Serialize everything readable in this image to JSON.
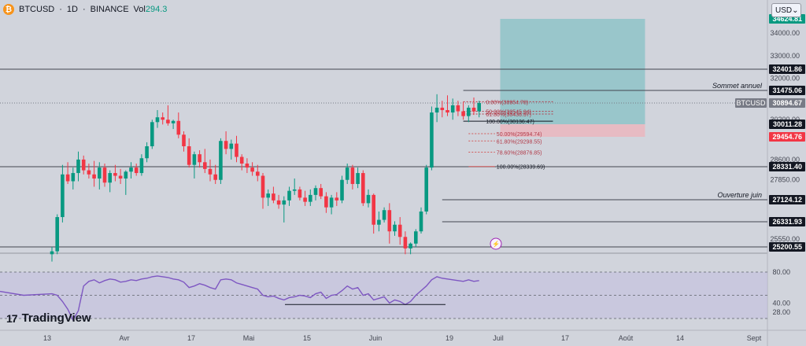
{
  "header": {
    "symbol": "BTCUSD",
    "sep1": "·",
    "interval": "1D",
    "sep2": "·",
    "exchange": "BINANCE",
    "vol_label": "Vol",
    "vol_value": "294.3"
  },
  "currency": {
    "label": "USD",
    "arrow": "⌄"
  },
  "logo": {
    "mark": "17",
    "text": "TradingView"
  },
  "colors": {
    "up": "#089981",
    "down": "#f23645",
    "rsi": "#7e57c2",
    "bg": "#d1d4dc",
    "tp_zone": "#8fc3c8",
    "sl_zone": "#e9b8c0"
  },
  "chart_data": {
    "type": "candlestick",
    "price_axis": {
      "ticks": [
        "34000.00",
        "33000.00",
        "32000.00",
        "30200.00",
        "28600.00",
        "27850.00",
        "25550.00"
      ],
      "labels": [
        {
          "text": "34624.81",
          "price": 34624.81,
          "bg": "#089981",
          "fg": "#ffffff"
        },
        {
          "text": "32401.86",
          "price": 32401.86,
          "bg": "#131722",
          "fg": "#ffffff"
        },
        {
          "text": "31475.06",
          "price": 31475.06,
          "bg": "#131722",
          "fg": "#ffffff"
        },
        {
          "text": "30894.67",
          "price": 30894.67,
          "bg": "#787b86",
          "fg": "#ffffff"
        },
        {
          "text": "30011.28",
          "price": 30011.28,
          "bg": "#131722",
          "fg": "#ffffff"
        },
        {
          "text": "29454.76",
          "price": 29454.76,
          "bg": "#f23645",
          "fg": "#ffffff"
        },
        {
          "text": "28331.40",
          "price": 28331.4,
          "bg": "#131722",
          "fg": "#ffffff"
        },
        {
          "text": "27124.12",
          "price": 27124.12,
          "bg": "#131722",
          "fg": "#ffffff"
        },
        {
          "text": "26331.93",
          "price": 26331.93,
          "bg": "#131722",
          "fg": "#ffffff"
        },
        {
          "text": "25200.55",
          "price": 25200.55,
          "bg": "#131722",
          "fg": "#ffffff"
        }
      ],
      "symbol_tag": "BTCUSD"
    },
    "time_axis": [
      "13",
      "Avr",
      "17",
      "Mai",
      "15",
      "Juin",
      "19",
      "Juil",
      "17",
      "Août",
      "14",
      "Sept"
    ],
    "levels": [
      {
        "price": 32401.86,
        "label": ""
      },
      {
        "price": 31475.06,
        "label": "Sommet annuel"
      },
      {
        "price": 28331.4,
        "label": ""
      },
      {
        "price": 27124.12,
        "label": "Ouverture juin"
      },
      {
        "price": 26331.93,
        "label": ""
      },
      {
        "price": 25200.55,
        "label": ""
      }
    ],
    "fib_levels": [
      {
        "text": "0.00%(30954.78)",
        "price": 30954.78
      },
      {
        "text": "50.00%(30545.34)",
        "price": 30545.34
      },
      {
        "text": "61.80%(30436.37)",
        "price": 30436.37
      },
      {
        "text": "100.00%(30136.47)",
        "price": 30136.47
      },
      {
        "text": "50.00%(29594.74)",
        "price": 29594.74
      },
      {
        "text": "61.80%(29298.55)",
        "price": 29298.55
      },
      {
        "text": "78.60%(28876.85)",
        "price": 28876.85
      },
      {
        "text": "100.00%(28339.69)",
        "price": 28339.69
      }
    ],
    "position": {
      "entry": 30011.28,
      "target": 34624.81,
      "stop": 29454.76
    },
    "candles": [
      [
        24950,
        25200,
        24700,
        25050
      ],
      [
        25050,
        26600,
        24950,
        26500
      ],
      [
        26500,
        28400,
        26300,
        28050
      ],
      [
        28050,
        28500,
        27700,
        27800
      ],
      [
        27800,
        28300,
        27500,
        28100
      ],
      [
        28100,
        28900,
        27800,
        28600
      ],
      [
        28600,
        28750,
        28050,
        28200
      ],
      [
        28200,
        28450,
        27900,
        28050
      ],
      [
        28050,
        28550,
        27600,
        27900
      ],
      [
        27900,
        28500,
        27500,
        28300
      ],
      [
        28300,
        28450,
        27600,
        27750
      ],
      [
        27750,
        28200,
        27400,
        28100
      ],
      [
        28100,
        28400,
        27800,
        28000
      ],
      [
        28000,
        28250,
        27700,
        27900
      ],
      [
        27900,
        28200,
        27300,
        28150
      ],
      [
        28150,
        28500,
        27900,
        28300
      ],
      [
        28300,
        28450,
        28000,
        28100
      ],
      [
        28100,
        28800,
        28000,
        28650
      ],
      [
        28650,
        29250,
        28500,
        29100
      ],
      [
        29100,
        30200,
        29000,
        30100
      ],
      [
        30100,
        30600,
        29850,
        30300
      ],
      [
        30300,
        30500,
        30000,
        30200
      ],
      [
        30200,
        30800,
        29950,
        30050
      ],
      [
        30050,
        30200,
        29800,
        30150
      ],
      [
        30150,
        30500,
        29400,
        29550
      ],
      [
        29550,
        29700,
        28900,
        29100
      ],
      [
        29100,
        29400,
        28300,
        28400
      ],
      [
        28400,
        28900,
        27900,
        28800
      ],
      [
        28800,
        28950,
        28300,
        28500
      ],
      [
        28500,
        29000,
        28100,
        28250
      ],
      [
        28250,
        28600,
        27800,
        28050
      ],
      [
        28050,
        28400,
        27700,
        27850
      ],
      [
        27850,
        29400,
        27700,
        29300
      ],
      [
        29300,
        29700,
        28800,
        29000
      ],
      [
        29000,
        29350,
        28600,
        29200
      ],
      [
        29200,
        29500,
        28500,
        28700
      ],
      [
        28700,
        28800,
        28200,
        28450
      ],
      [
        28450,
        28650,
        28100,
        28300
      ],
      [
        28300,
        28500,
        28000,
        28150
      ],
      [
        28150,
        28400,
        27800,
        28000
      ],
      [
        28000,
        28100,
        26800,
        27200
      ],
      [
        27200,
        27500,
        26900,
        27350
      ],
      [
        27350,
        27600,
        27000,
        27100
      ],
      [
        27100,
        27300,
        26800,
        26950
      ],
      [
        26950,
        27250,
        26300,
        27100
      ],
      [
        27100,
        27600,
        26900,
        27450
      ],
      [
        27450,
        27900,
        27300,
        27500
      ],
      [
        27500,
        27600,
        27100,
        27200
      ],
      [
        27200,
        27450,
        26900,
        27050
      ],
      [
        27050,
        27500,
        26900,
        27300
      ],
      [
        27300,
        27650,
        27100,
        27550
      ],
      [
        27550,
        27700,
        27150,
        27250
      ],
      [
        27250,
        27400,
        26650,
        26850
      ],
      [
        26850,
        27300,
        26600,
        27200
      ],
      [
        27200,
        27400,
        26900,
        27100
      ],
      [
        27100,
        28000,
        27000,
        27850
      ],
      [
        27850,
        28450,
        27700,
        28300
      ],
      [
        28300,
        28400,
        27500,
        27700
      ],
      [
        27700,
        28300,
        27550,
        28100
      ],
      [
        28100,
        28200,
        26900,
        27000
      ],
      [
        27000,
        27500,
        26850,
        27300
      ],
      [
        27300,
        27350,
        25800,
        26200
      ],
      [
        26200,
        26700,
        25900,
        26400
      ],
      [
        26400,
        26850,
        26300,
        26750
      ],
      [
        26750,
        27000,
        25350,
        25900
      ],
      [
        25900,
        26350,
        25700,
        26200
      ],
      [
        26200,
        26500,
        25300,
        25650
      ],
      [
        25650,
        25900,
        24950,
        25150
      ],
      [
        25150,
        25400,
        24950,
        25350
      ],
      [
        25350,
        26000,
        25200,
        25900
      ],
      [
        25900,
        26850,
        25800,
        26700
      ],
      [
        26700,
        28400,
        26600,
        28300
      ],
      [
        28300,
        30750,
        28200,
        30500
      ],
      [
        30500,
        31300,
        30100,
        30700
      ],
      [
        30700,
        31000,
        30300,
        30600
      ],
      [
        30600,
        31250,
        30350,
        30500
      ],
      [
        30500,
        31100,
        30200,
        30800
      ],
      [
        30800,
        31000,
        30350,
        30550
      ],
      [
        30550,
        30950,
        30200,
        30350
      ],
      [
        30350,
        30800,
        30100,
        30700
      ],
      [
        30700,
        31150,
        30400,
        30550
      ],
      [
        30550,
        31000,
        30300,
        30894.67
      ]
    ],
    "rsi": {
      "ticks": [
        "80.00",
        "40.00",
        "28.00"
      ],
      "values": [
        52,
        50,
        42,
        32,
        18,
        30,
        62,
        68,
        70,
        66,
        69,
        71,
        70,
        67,
        68,
        70,
        69,
        71,
        72,
        74,
        75,
        74,
        73,
        71,
        70,
        67,
        60,
        62,
        65,
        63,
        60,
        58,
        70,
        71,
        70,
        66,
        64,
        62,
        60,
        58,
        50,
        48,
        49,
        46,
        44,
        47,
        48,
        50,
        49,
        47,
        52,
        54,
        46,
        50,
        51,
        56,
        62,
        58,
        60,
        50,
        52,
        44,
        46,
        48,
        40,
        44,
        42,
        38,
        42,
        50,
        56,
        62,
        70,
        74,
        72,
        71,
        70,
        69,
        68,
        70,
        68,
        69
      ]
    }
  }
}
